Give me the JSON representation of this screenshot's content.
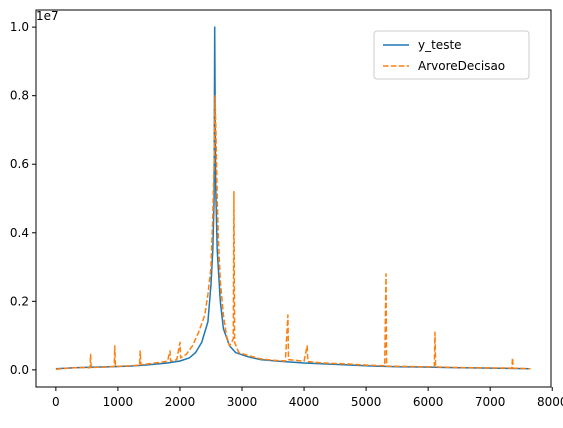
{
  "chart_data": {
    "type": "line",
    "title": "",
    "xlabel": "",
    "ylabel": "",
    "xlim": [
      -320,
      7980
    ],
    "ylim": [
      -500000,
      10500000
    ],
    "x_ticks": [
      0,
      1000,
      2000,
      3000,
      4000,
      5000,
      6000,
      7000,
      8000
    ],
    "x_tick_labels": [
      "0",
      "1000",
      "2000",
      "3000",
      "4000",
      "5000",
      "6000",
      "7000",
      "8000"
    ],
    "y_ticks": [
      0,
      2000000,
      4000000,
      6000000,
      8000000,
      10000000
    ],
    "y_tick_labels": [
      "0.0",
      "0.2",
      "0.4",
      "0.6",
      "0.8",
      "1.0"
    ],
    "y_offset_label": "1e7",
    "grid": false,
    "legend_position": "top-right",
    "series": [
      {
        "name": "y_teste",
        "color": "#1f77b4",
        "style": "solid",
        "points": [
          [
            0,
            30000
          ],
          [
            300,
            60000
          ],
          [
            600,
            80000
          ],
          [
            900,
            90000
          ],
          [
            1200,
            110000
          ],
          [
            1500,
            150000
          ],
          [
            1800,
            200000
          ],
          [
            2000,
            260000
          ],
          [
            2150,
            350000
          ],
          [
            2250,
            500000
          ],
          [
            2350,
            800000
          ],
          [
            2450,
            1400000
          ],
          [
            2500,
            2500000
          ],
          [
            2530,
            3500000
          ],
          [
            2550,
            5000000
          ],
          [
            2560,
            10000000
          ],
          [
            2575,
            5500000
          ],
          [
            2600,
            3500000
          ],
          [
            2650,
            2000000
          ],
          [
            2700,
            1200000
          ],
          [
            2800,
            700000
          ],
          [
            2900,
            500000
          ],
          [
            3100,
            380000
          ],
          [
            3300,
            300000
          ],
          [
            3600,
            250000
          ],
          [
            4000,
            200000
          ],
          [
            4500,
            160000
          ],
          [
            5000,
            120000
          ],
          [
            5500,
            90000
          ],
          [
            6000,
            80000
          ],
          [
            6500,
            60000
          ],
          [
            7000,
            50000
          ],
          [
            7400,
            40000
          ],
          [
            7650,
            30000
          ]
        ]
      },
      {
        "name": "ArvoreDecisao",
        "color": "#ff7f0e",
        "style": "dashed",
        "points": [
          [
            0,
            20000
          ],
          [
            200,
            50000
          ],
          [
            400,
            70000
          ],
          [
            550,
            60000
          ],
          [
            560,
            450000
          ],
          [
            570,
            70000
          ],
          [
            800,
            80000
          ],
          [
            940,
            100000
          ],
          [
            950,
            700000
          ],
          [
            960,
            100000
          ],
          [
            1200,
            120000
          ],
          [
            1350,
            140000
          ],
          [
            1360,
            550000
          ],
          [
            1370,
            150000
          ],
          [
            1600,
            200000
          ],
          [
            1800,
            250000
          ],
          [
            1840,
            550000
          ],
          [
            1850,
            250000
          ],
          [
            1950,
            300000
          ],
          [
            2000,
            800000
          ],
          [
            2010,
            350000
          ],
          [
            2100,
            450000
          ],
          [
            2200,
            700000
          ],
          [
            2300,
            1100000
          ],
          [
            2400,
            1600000
          ],
          [
            2450,
            2200000
          ],
          [
            2500,
            3000000
          ],
          [
            2530,
            4500000
          ],
          [
            2550,
            6000000
          ],
          [
            2565,
            8000000
          ],
          [
            2580,
            7000000
          ],
          [
            2600,
            5000000
          ],
          [
            2620,
            3800000
          ],
          [
            2650,
            2600000
          ],
          [
            2700,
            1600000
          ],
          [
            2750,
            1000000
          ],
          [
            2800,
            700000
          ],
          [
            2860,
            900000
          ],
          [
            2870,
            5200000
          ],
          [
            2880,
            800000
          ],
          [
            2950,
            500000
          ],
          [
            3100,
            420000
          ],
          [
            3300,
            320000
          ],
          [
            3500,
            280000
          ],
          [
            3700,
            260000
          ],
          [
            3740,
            1600000
          ],
          [
            3750,
            300000
          ],
          [
            4000,
            250000
          ],
          [
            4050,
            700000
          ],
          [
            4060,
            240000
          ],
          [
            4300,
            200000
          ],
          [
            4700,
            170000
          ],
          [
            5000,
            140000
          ],
          [
            5300,
            120000
          ],
          [
            5320,
            2800000
          ],
          [
            5330,
            110000
          ],
          [
            5600,
            100000
          ],
          [
            5900,
            90000
          ],
          [
            6100,
            90000
          ],
          [
            6110,
            1100000
          ],
          [
            6120,
            90000
          ],
          [
            6400,
            70000
          ],
          [
            6800,
            60000
          ],
          [
            7100,
            55000
          ],
          [
            7350,
            50000
          ],
          [
            7360,
            350000
          ],
          [
            7370,
            50000
          ],
          [
            7650,
            30000
          ]
        ]
      }
    ]
  }
}
